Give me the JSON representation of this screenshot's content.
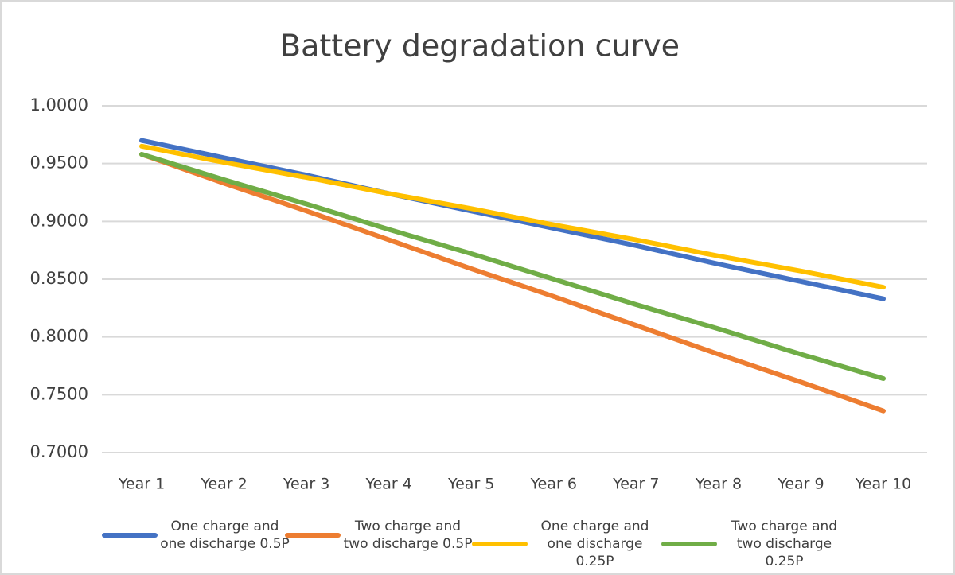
{
  "chart_data": {
    "type": "line",
    "title": "Battery degradation curve",
    "categories": [
      "Year 1",
      "Year 2",
      "Year 3",
      "Year 4",
      "Year 5",
      "Year 6",
      "Year 7",
      "Year 8",
      "Year 9",
      "Year 10"
    ],
    "series": [
      {
        "name": "One charge and one discharge 0.5P",
        "color": "#4472c4",
        "values": [
          0.97,
          0.955,
          0.94,
          0.924,
          0.909,
          0.894,
          0.879,
          0.863,
          0.848,
          0.833
        ]
      },
      {
        "name": "Two charge and two discharge 0.5P",
        "color": "#ed7d31",
        "values": [
          0.958,
          0.933,
          0.909,
          0.884,
          0.859,
          0.835,
          0.81,
          0.785,
          0.761,
          0.736
        ]
      },
      {
        "name": "One charge and one discharge 0.25P",
        "color": "#ffc000",
        "values": [
          0.965,
          0.951,
          0.938,
          0.924,
          0.911,
          0.897,
          0.884,
          0.87,
          0.857,
          0.843
        ]
      },
      {
        "name": "Two charge and two discharge 0.25P",
        "color": "#70ad47",
        "values": [
          0.958,
          0.936,
          0.915,
          0.893,
          0.872,
          0.85,
          0.828,
          0.807,
          0.785,
          0.764
        ]
      }
    ],
    "ylim": [
      0.7,
      1.0
    ],
    "yticks": [
      {
        "value": 0.7,
        "label": "0.7000"
      },
      {
        "value": 0.75,
        "label": "0.7500"
      },
      {
        "value": 0.8,
        "label": "0.8000"
      },
      {
        "value": 0.85,
        "label": "0.8500"
      },
      {
        "value": 0.9,
        "label": "0.9000"
      },
      {
        "value": 0.95,
        "label": "0.9500"
      },
      {
        "value": 1.0,
        "label": "1.0000"
      }
    ],
    "grid": true
  }
}
